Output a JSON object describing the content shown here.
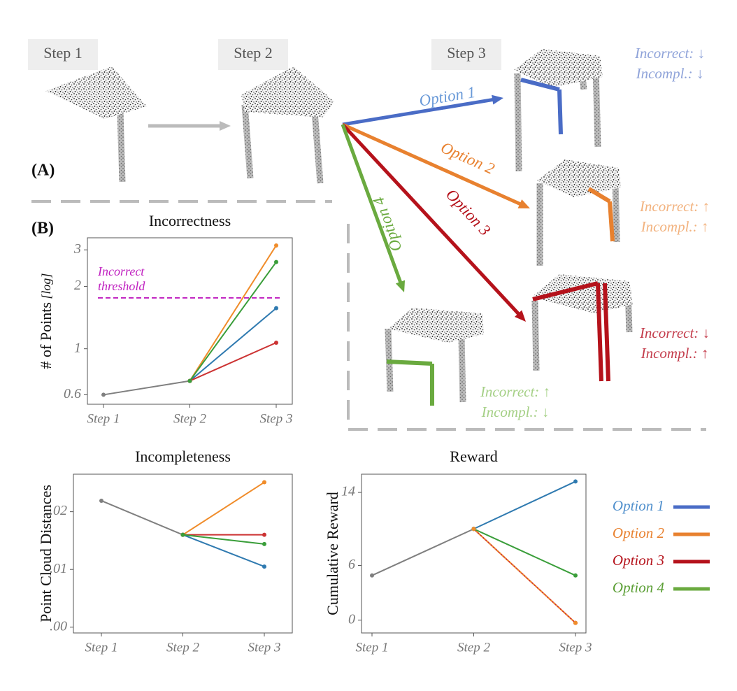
{
  "panel_a": {
    "label": "(A)",
    "steps": [
      "Step 1",
      "Step 2",
      "Step 3"
    ],
    "options": [
      {
        "label": "Option 1",
        "color": "#4a6cc6",
        "text_color": "#6a9ad8",
        "annotation_color": "#8fa3d9",
        "incorrect": "Incorrect: ↓",
        "incomplete": "Incompl.: ↓"
      },
      {
        "label": "Option 2",
        "color": "#e8812f",
        "text_color": "#e8812f",
        "annotation_color": "#f2b27e",
        "incorrect": "Incorrect: ↑",
        "incomplete": "Incompl.: ↑"
      },
      {
        "label": "Option 3",
        "color": "#b5121b",
        "text_color": "#b5121b",
        "annotation_color": "#c43d4c",
        "incorrect": "Incorrect: ↓",
        "incomplete": "Incompl.: ↑"
      },
      {
        "label": "Option 4",
        "color": "#6aaa3f",
        "text_color": "#6aaa3f",
        "annotation_color": "#a5d086",
        "incorrect": "Incorrect: ↑",
        "incomplete": "Incompl.: ↓"
      }
    ]
  },
  "panel_b": {
    "label": "(B)"
  },
  "legend": [
    {
      "name": "Option 1",
      "color": "#4a6cc6",
      "text_color": "#4f8fcc"
    },
    {
      "name": "Option 2",
      "color": "#e8812f",
      "text_color": "#e8812f"
    },
    {
      "name": "Option 3",
      "color": "#b5121b",
      "text_color": "#b5121b"
    },
    {
      "name": "Option 4",
      "color": "#6aaa3f",
      "text_color": "#5a9e34"
    }
  ],
  "chart_data": [
    {
      "type": "line",
      "title": "Incorrectness",
      "ylabel": "# of Points",
      "ylabel_unit": "[log]",
      "log": true,
      "categories": [
        "Step 1",
        "Step 2",
        "Step 3"
      ],
      "ylim": [
        0.54,
        3.43
      ],
      "yticks": [
        0.6,
        1,
        2,
        3
      ],
      "threshold": {
        "value": 1.76,
        "label": [
          "Incorrect",
          "threshold"
        ],
        "color": "#c020c0"
      },
      "series": [
        {
          "color": "#7f7f7f",
          "values": [
            0.6,
            0.7,
            null
          ]
        },
        {
          "color": "#2f7ab0",
          "values": [
            null,
            0.7,
            1.57
          ]
        },
        {
          "color": "#f08c2a",
          "values": [
            null,
            0.7,
            3.15
          ]
        },
        {
          "color": "#cc3333",
          "values": [
            null,
            0.7,
            1.07
          ]
        },
        {
          "color": "#3a9e3a",
          "values": [
            null,
            0.7,
            2.62
          ]
        }
      ]
    },
    {
      "type": "line",
      "title": "Incompleteness",
      "ylabel": "Point Cloud Distances",
      "categories": [
        "Step 1",
        "Step 2",
        "Step 3"
      ],
      "ylim": [
        -0.001,
        0.0265
      ],
      "yticks": [
        {
          "value": 0,
          "label": ".00"
        },
        {
          "value": 0.01,
          "label": ".01"
        },
        {
          "value": 0.02,
          "label": ".02"
        }
      ],
      "series": [
        {
          "color": "#7f7f7f",
          "values": [
            0.0219,
            0.016,
            null
          ]
        },
        {
          "color": "#2f7ab0",
          "values": [
            null,
            0.016,
            0.0105
          ]
        },
        {
          "color": "#f08c2a",
          "values": [
            null,
            0.016,
            0.0251
          ]
        },
        {
          "color": "#cc3333",
          "values": [
            null,
            0.016,
            0.016
          ]
        },
        {
          "color": "#3a9e3a",
          "values": [
            null,
            0.016,
            0.0144
          ]
        }
      ]
    },
    {
      "type": "line",
      "title": "Reward",
      "ylabel": "Cumulative Reward",
      "categories": [
        "Step 1",
        "Step 2",
        "Step 3"
      ],
      "ylim": [
        -1.4,
        16
      ],
      "yticks": [
        0,
        6,
        14
      ],
      "series": [
        {
          "color": "#7f7f7f",
          "values": [
            4.9,
            10,
            null
          ]
        },
        {
          "color": "#2f7ab0",
          "values": [
            null,
            10,
            15.2
          ]
        },
        {
          "color": "#f08c2a",
          "dash": true,
          "values": [
            null,
            10,
            -0.3
          ]
        },
        {
          "color": "#cc3333",
          "values": [
            null,
            10,
            -0.3
          ]
        },
        {
          "color": "#3a9e3a",
          "values": [
            null,
            10,
            4.9
          ]
        }
      ]
    }
  ]
}
